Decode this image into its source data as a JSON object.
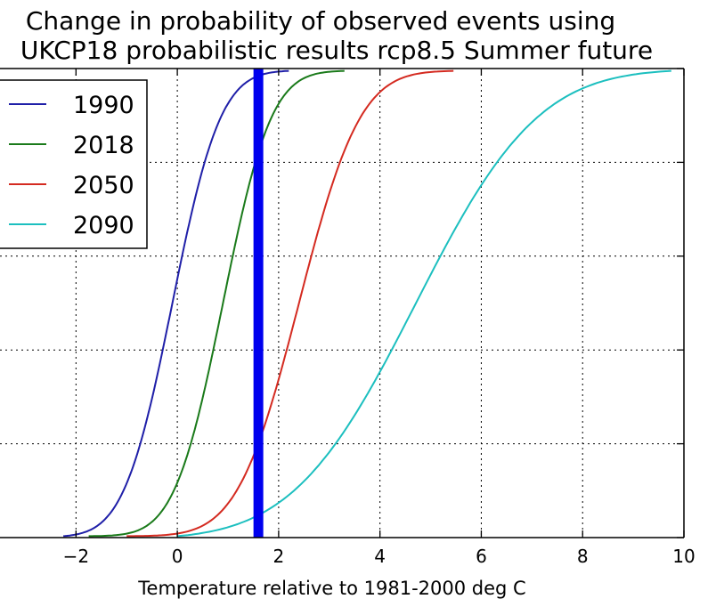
{
  "chart_data": {
    "type": "line",
    "title": "Change in probability of observed events using",
    "subtitle": "UKCP18 probabilistic results rcp8.5 Summer future",
    "xlabel": "Temperature relative to 1981-2000 deg C",
    "ylabel": "",
    "xlim": [
      -3.5,
      10
    ],
    "ylim": [
      0,
      1
    ],
    "xticks": [
      -2,
      0,
      2,
      4,
      6,
      8,
      10
    ],
    "xtick_labels": [
      "−2",
      "0",
      "2",
      "4",
      "6",
      "8",
      "10"
    ],
    "yticks": [
      0.2,
      0.4,
      0.6,
      0.8
    ],
    "grid": true,
    "legend_position": "top-left",
    "series": [
      {
        "name": "1990",
        "color": "#1f1fa8",
        "start": -2.25,
        "end": 2.2,
        "mu": -0.1,
        "sigma": 0.75
      },
      {
        "name": "2018",
        "color": "#1a7a1a",
        "start": -1.75,
        "end": 3.3,
        "mu": 0.9,
        "sigma": 0.75
      },
      {
        "name": "2050",
        "color": "#d42a20",
        "start": -1.0,
        "end": 5.45,
        "mu": 2.4,
        "sigma": 0.95
      },
      {
        "name": "2090",
        "color": "#1cbfbf",
        "start": 0.0,
        "end": 9.75,
        "mu": 4.7,
        "sigma": 1.9
      }
    ],
    "vertical_line": {
      "x": 1.6,
      "color": "#0000ee"
    }
  }
}
